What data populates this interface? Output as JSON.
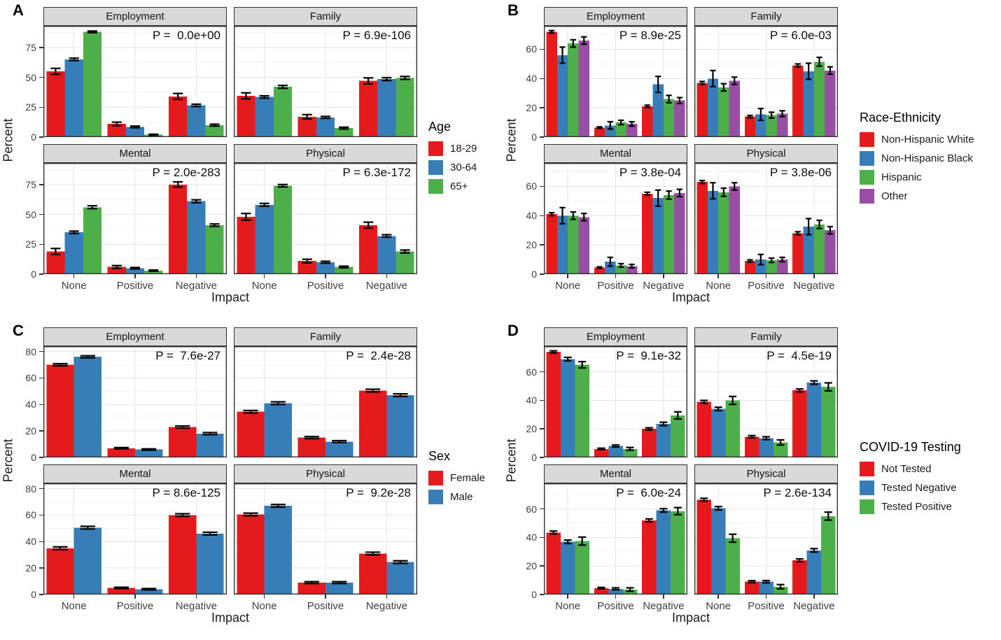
{
  "chart_data": [
    {
      "panel": "A",
      "type": "bar",
      "group_by": "Age",
      "categories": [
        "None",
        "Positive",
        "Negative"
      ],
      "xlabel": "Impact",
      "ylabel": "Percent",
      "yticks": [
        0,
        25,
        50,
        75
      ],
      "ylim": [
        0,
        93
      ],
      "grid": true,
      "legend": {
        "title": "Age",
        "position": "right",
        "entries": [
          {
            "label": "18-29",
            "color": "#E41A1C"
          },
          {
            "label": "30-64",
            "color": "#377EB8"
          },
          {
            "label": "65+",
            "color": "#4DAF4A"
          }
        ]
      },
      "facets": [
        {
          "title": "Employment",
          "p_label": "P =  0.0e+00",
          "series": [
            {
              "name": "18-29",
              "values": [
                55,
                11,
                34
              ],
              "errors": [
                2.5,
                1.5,
                2.5
              ]
            },
            {
              "name": "30-64",
              "values": [
                65,
                8.5,
                26.5
              ],
              "errors": [
                1,
                0.7,
                1
              ]
            },
            {
              "name": "65+",
              "values": [
                88,
                2,
                10
              ],
              "errors": [
                0.7,
                0.4,
                0.8
              ]
            }
          ]
        },
        {
          "title": "Family",
          "p_label": "P = 6.9e-106",
          "series": [
            {
              "name": "18-29",
              "values": [
                34.5,
                17,
                47
              ],
              "errors": [
                2.5,
                1.8,
                2.5
              ]
            },
            {
              "name": "30-64",
              "values": [
                33.5,
                16.5,
                48.5
              ],
              "errors": [
                1,
                0.8,
                1.2
              ]
            },
            {
              "name": "65+",
              "values": [
                42,
                7.5,
                49.5
              ],
              "errors": [
                1.2,
                0.8,
                1.2
              ]
            }
          ]
        },
        {
          "title": "Mental",
          "p_label": "P = 2.0e-283",
          "series": [
            {
              "name": "18-29",
              "values": [
                19,
                6,
                75
              ],
              "errors": [
                2.5,
                1.2,
                2.2
              ]
            },
            {
              "name": "30-64",
              "values": [
                35,
                5,
                61
              ],
              "errors": [
                1,
                0.6,
                1.2
              ]
            },
            {
              "name": "65+",
              "values": [
                56,
                3,
                41
              ],
              "errors": [
                1.2,
                0.5,
                1
              ]
            }
          ]
        },
        {
          "title": "Physical",
          "p_label": "P = 6.3e-172",
          "series": [
            {
              "name": "18-29",
              "values": [
                48,
                11,
                41
              ],
              "errors": [
                2.8,
                1.5,
                2.5
              ]
            },
            {
              "name": "30-64",
              "values": [
                58,
                10,
                32
              ],
              "errors": [
                1.2,
                0.8,
                1
              ]
            },
            {
              "name": "65+",
              "values": [
                74,
                6,
                19
              ],
              "errors": [
                1,
                0.7,
                1.2
              ]
            }
          ]
        }
      ]
    },
    {
      "panel": "B",
      "type": "bar",
      "group_by": "Race-Ethnicity",
      "categories": [
        "None",
        "Positive",
        "Negative"
      ],
      "xlabel": "Impact",
      "ylabel": "Percent",
      "yticks": [
        0,
        20,
        40,
        60
      ],
      "ylim": [
        0,
        76
      ],
      "grid": true,
      "legend": {
        "title": "Race-Ethnicity",
        "position": "right",
        "entries": [
          {
            "label": "Non-Hispanic White",
            "color": "#E41A1C"
          },
          {
            "label": "Non-Hispanic Black",
            "color": "#377EB8"
          },
          {
            "label": "Hispanic",
            "color": "#4DAF4A"
          },
          {
            "label": "Other",
            "color": "#984EA3"
          }
        ]
      },
      "facets": [
        {
          "title": "Employment",
          "p_label": "P = 8.9e-25",
          "series": [
            {
              "name": "Non-Hispanic White",
              "values": [
                72,
                6.5,
                21
              ],
              "errors": [
                0.8,
                0.5,
                0.8
              ]
            },
            {
              "name": "Non-Hispanic Black",
              "values": [
                56,
                8,
                36
              ],
              "errors": [
                5.5,
                2.5,
                5.5
              ]
            },
            {
              "name": "Hispanic",
              "values": [
                64,
                10,
                26
              ],
              "errors": [
                2.5,
                1.5,
                2.5
              ]
            },
            {
              "name": "Other",
              "values": [
                66,
                9,
                25
              ],
              "errors": [
                2.5,
                1.5,
                2
              ]
            }
          ]
        },
        {
          "title": "Family",
          "p_label": "P = 6.0e-03",
          "series": [
            {
              "name": "Non-Hispanic White",
              "values": [
                37,
                14,
                49
              ],
              "errors": [
                1,
                0.8,
                1
              ]
            },
            {
              "name": "Non-Hispanic Black",
              "values": [
                40,
                15.5,
                45
              ],
              "errors": [
                5.5,
                4,
                5.5
              ]
            },
            {
              "name": "Hispanic",
              "values": [
                34,
                15,
                51.5
              ],
              "errors": [
                2.5,
                2,
                3
              ]
            },
            {
              "name": "Other",
              "values": [
                38.5,
                16,
                45.5
              ],
              "errors": [
                2.5,
                2,
                2.5
              ]
            }
          ]
        },
        {
          "title": "Mental",
          "p_label": "P = 3.8e-04",
          "series": [
            {
              "name": "Non-Hispanic White",
              "values": [
                41,
                4.5,
                55
              ],
              "errors": [
                1,
                0.5,
                1
              ]
            },
            {
              "name": "Non-Hispanic Black",
              "values": [
                40,
                8.5,
                52
              ],
              "errors": [
                5.5,
                3,
                5.5
              ]
            },
            {
              "name": "Hispanic",
              "values": [
                40,
                6,
                54
              ],
              "errors": [
                2.5,
                1.2,
                2.8
              ]
            },
            {
              "name": "Other",
              "values": [
                39,
                5.5,
                55.5
              ],
              "errors": [
                2.5,
                1.2,
                2.5
              ]
            }
          ]
        },
        {
          "title": "Physical",
          "p_label": "P = 3.8e-06",
          "series": [
            {
              "name": "Non-Hispanic White",
              "values": [
                63,
                9,
                28
              ],
              "errors": [
                1,
                0.8,
                1
              ]
            },
            {
              "name": "Non-Hispanic Black",
              "values": [
                57,
                10,
                32.5
              ],
              "errors": [
                5.5,
                3.5,
                5.5
              ]
            },
            {
              "name": "Hispanic",
              "values": [
                56,
                9.5,
                34
              ],
              "errors": [
                2.8,
                1.5,
                2.8
              ]
            },
            {
              "name": "Other",
              "values": [
                60,
                10,
                30
              ],
              "errors": [
                2.5,
                1.5,
                2.5
              ]
            }
          ]
        }
      ]
    },
    {
      "panel": "C",
      "type": "bar",
      "group_by": "Sex",
      "categories": [
        "None",
        "Positive",
        "Negative"
      ],
      "xlabel": "Impact",
      "ylabel": "Percent",
      "yticks": [
        0,
        20,
        40,
        60,
        80
      ],
      "ylim": [
        0,
        84
      ],
      "grid": true,
      "legend": {
        "title": "Sex",
        "position": "right",
        "entries": [
          {
            "label": "Female",
            "color": "#E41A1C"
          },
          {
            "label": "Male",
            "color": "#377EB8"
          }
        ]
      },
      "facets": [
        {
          "title": "Employment",
          "p_label": "P =  7.6e-27",
          "series": [
            {
              "name": "Female",
              "values": [
                70,
                7,
                23
              ],
              "errors": [
                0.8,
                0.5,
                0.8
              ]
            },
            {
              "name": "Male",
              "values": [
                76,
                6,
                18
              ],
              "errors": [
                0.8,
                0.5,
                0.8
              ]
            }
          ]
        },
        {
          "title": "Family",
          "p_label": "P =  2.4e-28",
          "series": [
            {
              "name": "Female",
              "values": [
                34.5,
                15,
                50.5
              ],
              "errors": [
                1,
                0.8,
                1
              ]
            },
            {
              "name": "Male",
              "values": [
                41,
                12,
                47
              ],
              "errors": [
                1,
                0.7,
                1
              ]
            }
          ]
        },
        {
          "title": "Mental",
          "p_label": "P = 8.6e-125",
          "series": [
            {
              "name": "Female",
              "values": [
                35,
                5,
                60
              ],
              "errors": [
                1,
                0.5,
                1
              ]
            },
            {
              "name": "Male",
              "values": [
                50.5,
                4,
                46
              ],
              "errors": [
                1,
                0.5,
                1
              ]
            }
          ]
        },
        {
          "title": "Physical",
          "p_label": "P =  9.2e-28",
          "series": [
            {
              "name": "Female",
              "values": [
                60.5,
                9,
                31
              ],
              "errors": [
                1,
                0.7,
                1
              ]
            },
            {
              "name": "Male",
              "values": [
                67,
                9,
                24.5
              ],
              "errors": [
                1,
                0.7,
                1
              ]
            }
          ]
        }
      ]
    },
    {
      "panel": "D",
      "type": "bar",
      "group_by": "COVID-19 Testing",
      "categories": [
        "None",
        "Positive",
        "Negative"
      ],
      "xlabel": "Impact",
      "ylabel": "Percent",
      "yticks": [
        0,
        20,
        40,
        60
      ],
      "ylim": [
        0,
        78
      ],
      "grid": true,
      "legend": {
        "title": "COVID-19 Testing",
        "position": "right",
        "entries": [
          {
            "label": "Not Tested",
            "color": "#E41A1C"
          },
          {
            "label": "Tested Negative",
            "color": "#377EB8"
          },
          {
            "label": "Tested Positive",
            "color": "#4DAF4A"
          }
        ]
      },
      "facets": [
        {
          "title": "Employment",
          "p_label": "P =  9.1e-32",
          "series": [
            {
              "name": "Not Tested",
              "values": [
                74,
                6,
                20
              ],
              "errors": [
                0.8,
                0.5,
                0.8
              ]
            },
            {
              "name": "Tested Negative",
              "values": [
                69,
                8,
                23.5
              ],
              "errors": [
                1.2,
                0.7,
                1.2
              ]
            },
            {
              "name": "Tested Positive",
              "values": [
                65,
                6,
                29.5
              ],
              "errors": [
                2.2,
                1,
                2.5
              ]
            }
          ]
        },
        {
          "title": "Family",
          "p_label": "P =  4.5e-19",
          "series": [
            {
              "name": "Not Tested",
              "values": [
                39,
                14.5,
                47
              ],
              "errors": [
                1,
                0.8,
                1
              ]
            },
            {
              "name": "Tested Negative",
              "values": [
                34,
                13.5,
                52.5
              ],
              "errors": [
                1.2,
                1,
                1.2
              ]
            },
            {
              "name": "Tested Positive",
              "values": [
                40,
                10.5,
                49.5
              ],
              "errors": [
                2.8,
                1.8,
                2.8
              ]
            }
          ]
        },
        {
          "title": "Mental",
          "p_label": "P =  6.0e-24",
          "series": [
            {
              "name": "Not Tested",
              "values": [
                43.5,
                4.5,
                52
              ],
              "errors": [
                1,
                0.5,
                1
              ]
            },
            {
              "name": "Tested Negative",
              "values": [
                37,
                4,
                59
              ],
              "errors": [
                1.2,
                0.7,
                1.2
              ]
            },
            {
              "name": "Tested Positive",
              "values": [
                37.5,
                3.5,
                58.5
              ],
              "errors": [
                2.8,
                1.2,
                2.5
              ]
            }
          ]
        },
        {
          "title": "Physical",
          "p_label": "P = 2.6e-134",
          "series": [
            {
              "name": "Not Tested",
              "values": [
                66.5,
                9,
                24
              ],
              "errors": [
                1,
                0.7,
                1
              ]
            },
            {
              "name": "Tested Negative",
              "values": [
                60.5,
                9,
                31
              ],
              "errors": [
                1.2,
                0.8,
                1.2
              ]
            },
            {
              "name": "Tested Positive",
              "values": [
                39.5,
                5.5,
                55
              ],
              "errors": [
                2.8,
                1.5,
                2.8
              ]
            }
          ]
        }
      ]
    }
  ]
}
